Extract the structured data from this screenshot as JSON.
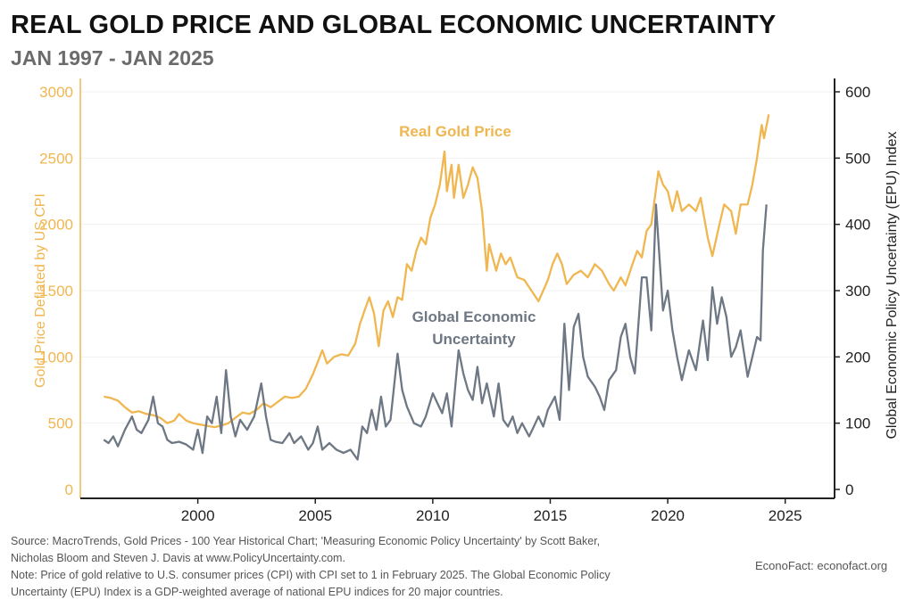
{
  "chart_data": {
    "type": "line",
    "title": "REAL GOLD PRICE AND GLOBAL ECONOMIC UNCERTAINTY",
    "subtitle": "JAN 1997 - JAN 2025",
    "x_ticks": [
      "2000",
      "2005",
      "2010",
      "2015",
      "2020",
      "2025"
    ],
    "x_tick_values": [
      2000,
      2005,
      2010,
      2015,
      2020,
      2025
    ],
    "xlim": [
      1995,
      2027.1
    ],
    "y_left": {
      "label": "Gold Price Deflated by US CPI",
      "ylim": [
        0,
        3000
      ],
      "ticks": [
        0,
        500,
        1000,
        1500,
        2000,
        2500,
        3000
      ],
      "color": "#f0b650"
    },
    "y_right": {
      "label": "Global Economic Policy Uncertainty (EPU) Index",
      "ylim": [
        0,
        600
      ],
      "ticks": [
        0,
        100,
        200,
        300,
        400,
        500,
        600
      ],
      "color": "#222222"
    },
    "grid": true,
    "series": [
      {
        "name": "Real Gold Price",
        "axis": "left",
        "color": "#f0b650",
        "x": [
          1996.0,
          1996.3,
          1996.6,
          1996.9,
          1997.2,
          1997.5,
          1997.8,
          1998.1,
          1998.4,
          1998.7,
          1999.0,
          1999.2,
          1999.5,
          1999.8,
          2000.1,
          2000.4,
          2000.7,
          2001.0,
          2001.3,
          2001.6,
          2001.9,
          2002.2,
          2002.5,
          2002.8,
          2003.1,
          2003.4,
          2003.7,
          2004.0,
          2004.3,
          2004.6,
          2004.9,
          2005.1,
          2005.3,
          2005.5,
          2005.8,
          2006.1,
          2006.4,
          2006.7,
          2006.9,
          2007.1,
          2007.3,
          2007.5,
          2007.7,
          2007.9,
          2008.1,
          2008.3,
          2008.5,
          2008.7,
          2008.9,
          2009.1,
          2009.3,
          2009.5,
          2009.7,
          2009.9,
          2010.1,
          2010.3,
          2010.5,
          2010.6,
          2010.8,
          2010.9,
          2011.1,
          2011.3,
          2011.5,
          2011.7,
          2011.9,
          2012.1,
          2012.3,
          2012.4,
          2012.7,
          2012.9,
          2013.1,
          2013.3,
          2013.6,
          2013.9,
          2014.2,
          2014.5,
          2014.7,
          2014.9,
          2015.1,
          2015.3,
          2015.5,
          2015.7,
          2016.0,
          2016.3,
          2016.6,
          2016.9,
          2017.2,
          2017.5,
          2017.7,
          2018.0,
          2018.2,
          2018.5,
          2018.7,
          2018.9,
          2019.1,
          2019.3,
          2019.6,
          2019.8,
          2020.0,
          2020.2,
          2020.4,
          2020.6,
          2020.9,
          2021.2,
          2021.4,
          2021.7,
          2021.9,
          2022.2,
          2022.4,
          2022.7,
          2022.9,
          2023.1,
          2023.4,
          2023.6,
          2023.8,
          2024.0,
          2024.1,
          2024.3
        ],
        "values": [
          700,
          690,
          670,
          620,
          580,
          590,
          570,
          560,
          540,
          500,
          520,
          570,
          520,
          500,
          490,
          480,
          470,
          480,
          500,
          540,
          580,
          570,
          600,
          650,
          620,
          660,
          700,
          690,
          700,
          760,
          870,
          960,
          1050,
          950,
          1000,
          1020,
          1010,
          1100,
          1250,
          1350,
          1450,
          1330,
          1080,
          1350,
          1420,
          1300,
          1450,
          1430,
          1700,
          1650,
          1800,
          1900,
          1850,
          2050,
          2150,
          2300,
          2550,
          2250,
          2450,
          2200,
          2450,
          2200,
          2300,
          2430,
          2350,
          2100,
          1650,
          1850,
          1650,
          1780,
          1700,
          1750,
          1600,
          1580,
          1500,
          1420,
          1500,
          1580,
          1700,
          1780,
          1700,
          1550,
          1620,
          1650,
          1600,
          1700,
          1650,
          1550,
          1500,
          1600,
          1540,
          1700,
          1800,
          1750,
          1950,
          2000,
          2400,
          2300,
          2250,
          2100,
          2250,
          2100,
          2150,
          2100,
          2200,
          1900,
          1760,
          2000,
          2150,
          2100,
          1930,
          2150,
          2150,
          2300,
          2500,
          2750,
          2650,
          2830
        ]
      },
      {
        "name": "Global Economic Uncertainty",
        "axis": "right",
        "color": "#6e7784",
        "x": [
          1996.0,
          1996.2,
          1996.4,
          1996.6,
          1996.9,
          1997.2,
          1997.4,
          1997.6,
          1997.9,
          1998.1,
          1998.3,
          1998.5,
          1998.7,
          1998.9,
          1999.2,
          1999.5,
          1999.8,
          2000.0,
          2000.2,
          2000.4,
          2000.6,
          2000.8,
          2001.0,
          2001.2,
          2001.4,
          2001.6,
          2001.8,
          2002.1,
          2002.4,
          2002.7,
          2002.9,
          2003.1,
          2003.3,
          2003.6,
          2003.9,
          2004.1,
          2004.4,
          2004.7,
          2004.9,
          2005.1,
          2005.3,
          2005.6,
          2005.9,
          2006.2,
          2006.5,
          2006.8,
          2007.0,
          2007.2,
          2007.4,
          2007.6,
          2007.8,
          2008.0,
          2008.2,
          2008.5,
          2008.7,
          2008.9,
          2009.2,
          2009.5,
          2009.7,
          2010.0,
          2010.2,
          2010.4,
          2010.6,
          2010.8,
          2011.1,
          2011.3,
          2011.5,
          2011.7,
          2011.9,
          2012.1,
          2012.3,
          2012.6,
          2012.8,
          2013.0,
          2013.2,
          2013.4,
          2013.6,
          2013.8,
          2014.1,
          2014.3,
          2014.5,
          2014.7,
          2014.9,
          2015.2,
          2015.4,
          2015.6,
          2015.8,
          2016.0,
          2016.2,
          2016.4,
          2016.6,
          2016.9,
          2017.1,
          2017.3,
          2017.5,
          2017.8,
          2018.0,
          2018.2,
          2018.4,
          2018.6,
          2018.9,
          2019.1,
          2019.3,
          2019.5,
          2019.8,
          2020.0,
          2020.2,
          2020.4,
          2020.6,
          2020.9,
          2021.2,
          2021.5,
          2021.7,
          2021.9,
          2022.1,
          2022.3,
          2022.5,
          2022.7,
          2022.9,
          2023.1,
          2023.4,
          2023.6,
          2023.8,
          2023.95,
          2024.05,
          2024.2
        ],
        "values": [
          75,
          70,
          80,
          65,
          90,
          110,
          90,
          85,
          105,
          140,
          100,
          95,
          75,
          70,
          72,
          68,
          60,
          90,
          55,
          110,
          100,
          140,
          85,
          180,
          110,
          80,
          105,
          90,
          110,
          160,
          110,
          75,
          72,
          70,
          85,
          70,
          80,
          60,
          70,
          95,
          60,
          70,
          60,
          55,
          60,
          45,
          95,
          85,
          120,
          90,
          140,
          95,
          105,
          205,
          150,
          125,
          100,
          95,
          110,
          145,
          130,
          115,
          145,
          95,
          210,
          175,
          150,
          135,
          185,
          130,
          160,
          110,
          160,
          105,
          95,
          110,
          85,
          100,
          80,
          95,
          110,
          95,
          120,
          140,
          105,
          250,
          150,
          245,
          265,
          200,
          170,
          155,
          140,
          120,
          165,
          180,
          230,
          250,
          200,
          175,
          320,
          320,
          240,
          430,
          270,
          300,
          240,
          200,
          165,
          210,
          180,
          255,
          195,
          305,
          250,
          290,
          260,
          200,
          215,
          240,
          170,
          200,
          230,
          225,
          360,
          430
        ]
      }
    ],
    "annotations": [
      "Real Gold Price",
      "Global Economic Uncertainty"
    ]
  },
  "labels": {
    "gold": "Real Gold Price",
    "epu_line1": "Global Economic",
    "epu_line2": "Uncertainty"
  },
  "footer": {
    "source_line1": "Source: MacroTrends, Gold Prices - 100 Year Historical Chart; 'Measuring Economic Policy Uncertainty' by Scott Baker,",
    "source_line2": "Nicholas Bloom and Steven J. Davis at www.PolicyUncertainty.com.",
    "note_line1": "Note: Price of gold relative to U.S. consumer prices (CPI) with CPI set to 1 in February 2025. The Global Economic Policy",
    "note_line2": "Uncertainty (EPU) Index is a GDP-weighted average of national EPU indices for 20 major countries.",
    "brand": "EconoFact:  econofact.org"
  }
}
